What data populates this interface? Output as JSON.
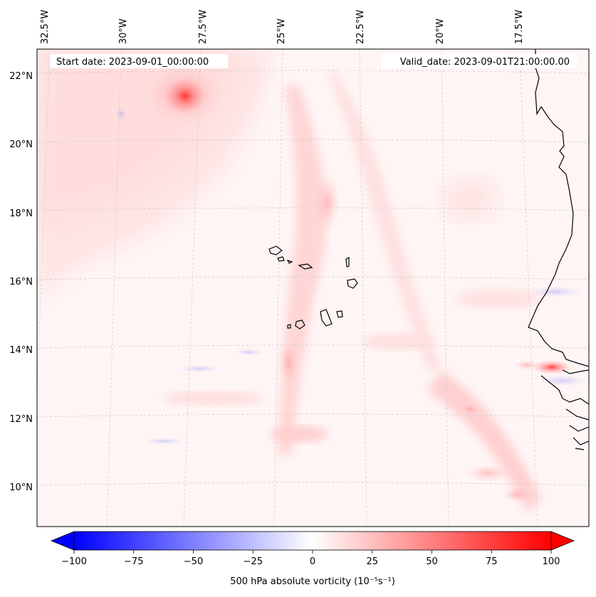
{
  "header": {
    "start_date": "Start date: 2023-09-01_00:00:00",
    "valid_date": "Valid_date: 2023-09-01T21:00:00.00"
  },
  "longitude_labels": [
    "32.5°W",
    "30°W",
    "27.5°W",
    "25°W",
    "22.5°W",
    "20°W",
    "17.5°W"
  ],
  "latitude_labels": [
    "22°N",
    "20°N",
    "18°N",
    "16°N",
    "14°N",
    "12°N",
    "10°N"
  ],
  "colorbar": {
    "label": "500 hPa absolute vorticity (10⁻⁵s⁻¹)",
    "min": -100,
    "max": 100,
    "ticks": [
      "−100",
      "−75",
      "−50",
      "−25",
      "0",
      "25",
      "50",
      "75",
      "100"
    ],
    "tick_values": [
      -100,
      -75,
      -50,
      -25,
      0,
      25,
      50,
      75,
      100
    ],
    "negative_color": "#0000ff",
    "zero_color": "#ffffff",
    "positive_color": "#ff0000"
  },
  "colors": {
    "coastline": "#000000",
    "gridline": "#c8c8c8",
    "frame": "#000000"
  },
  "chart_data": {
    "type": "heatmap",
    "variable": "500 hPa absolute vorticity",
    "units": "10^-5 s^-1",
    "region": {
      "lon_range": [
        -33,
        -15.5
      ],
      "lat_range": [
        9,
        22.8
      ]
    },
    "features": [
      {
        "name": "vortex",
        "lon": -28.1,
        "lat": 21.4,
        "value": 70
      },
      {
        "name": "band",
        "lon": -16.2,
        "lat": 13.4,
        "value": 65
      },
      {
        "name": "band",
        "lon": -18.5,
        "lat": 10.3,
        "value": 40
      },
      {
        "name": "band",
        "lon": -23.0,
        "lat": 18.3,
        "value": 30
      },
      {
        "name": "band",
        "lon": -24.5,
        "lat": 13.6,
        "value": 28
      }
    ]
  }
}
